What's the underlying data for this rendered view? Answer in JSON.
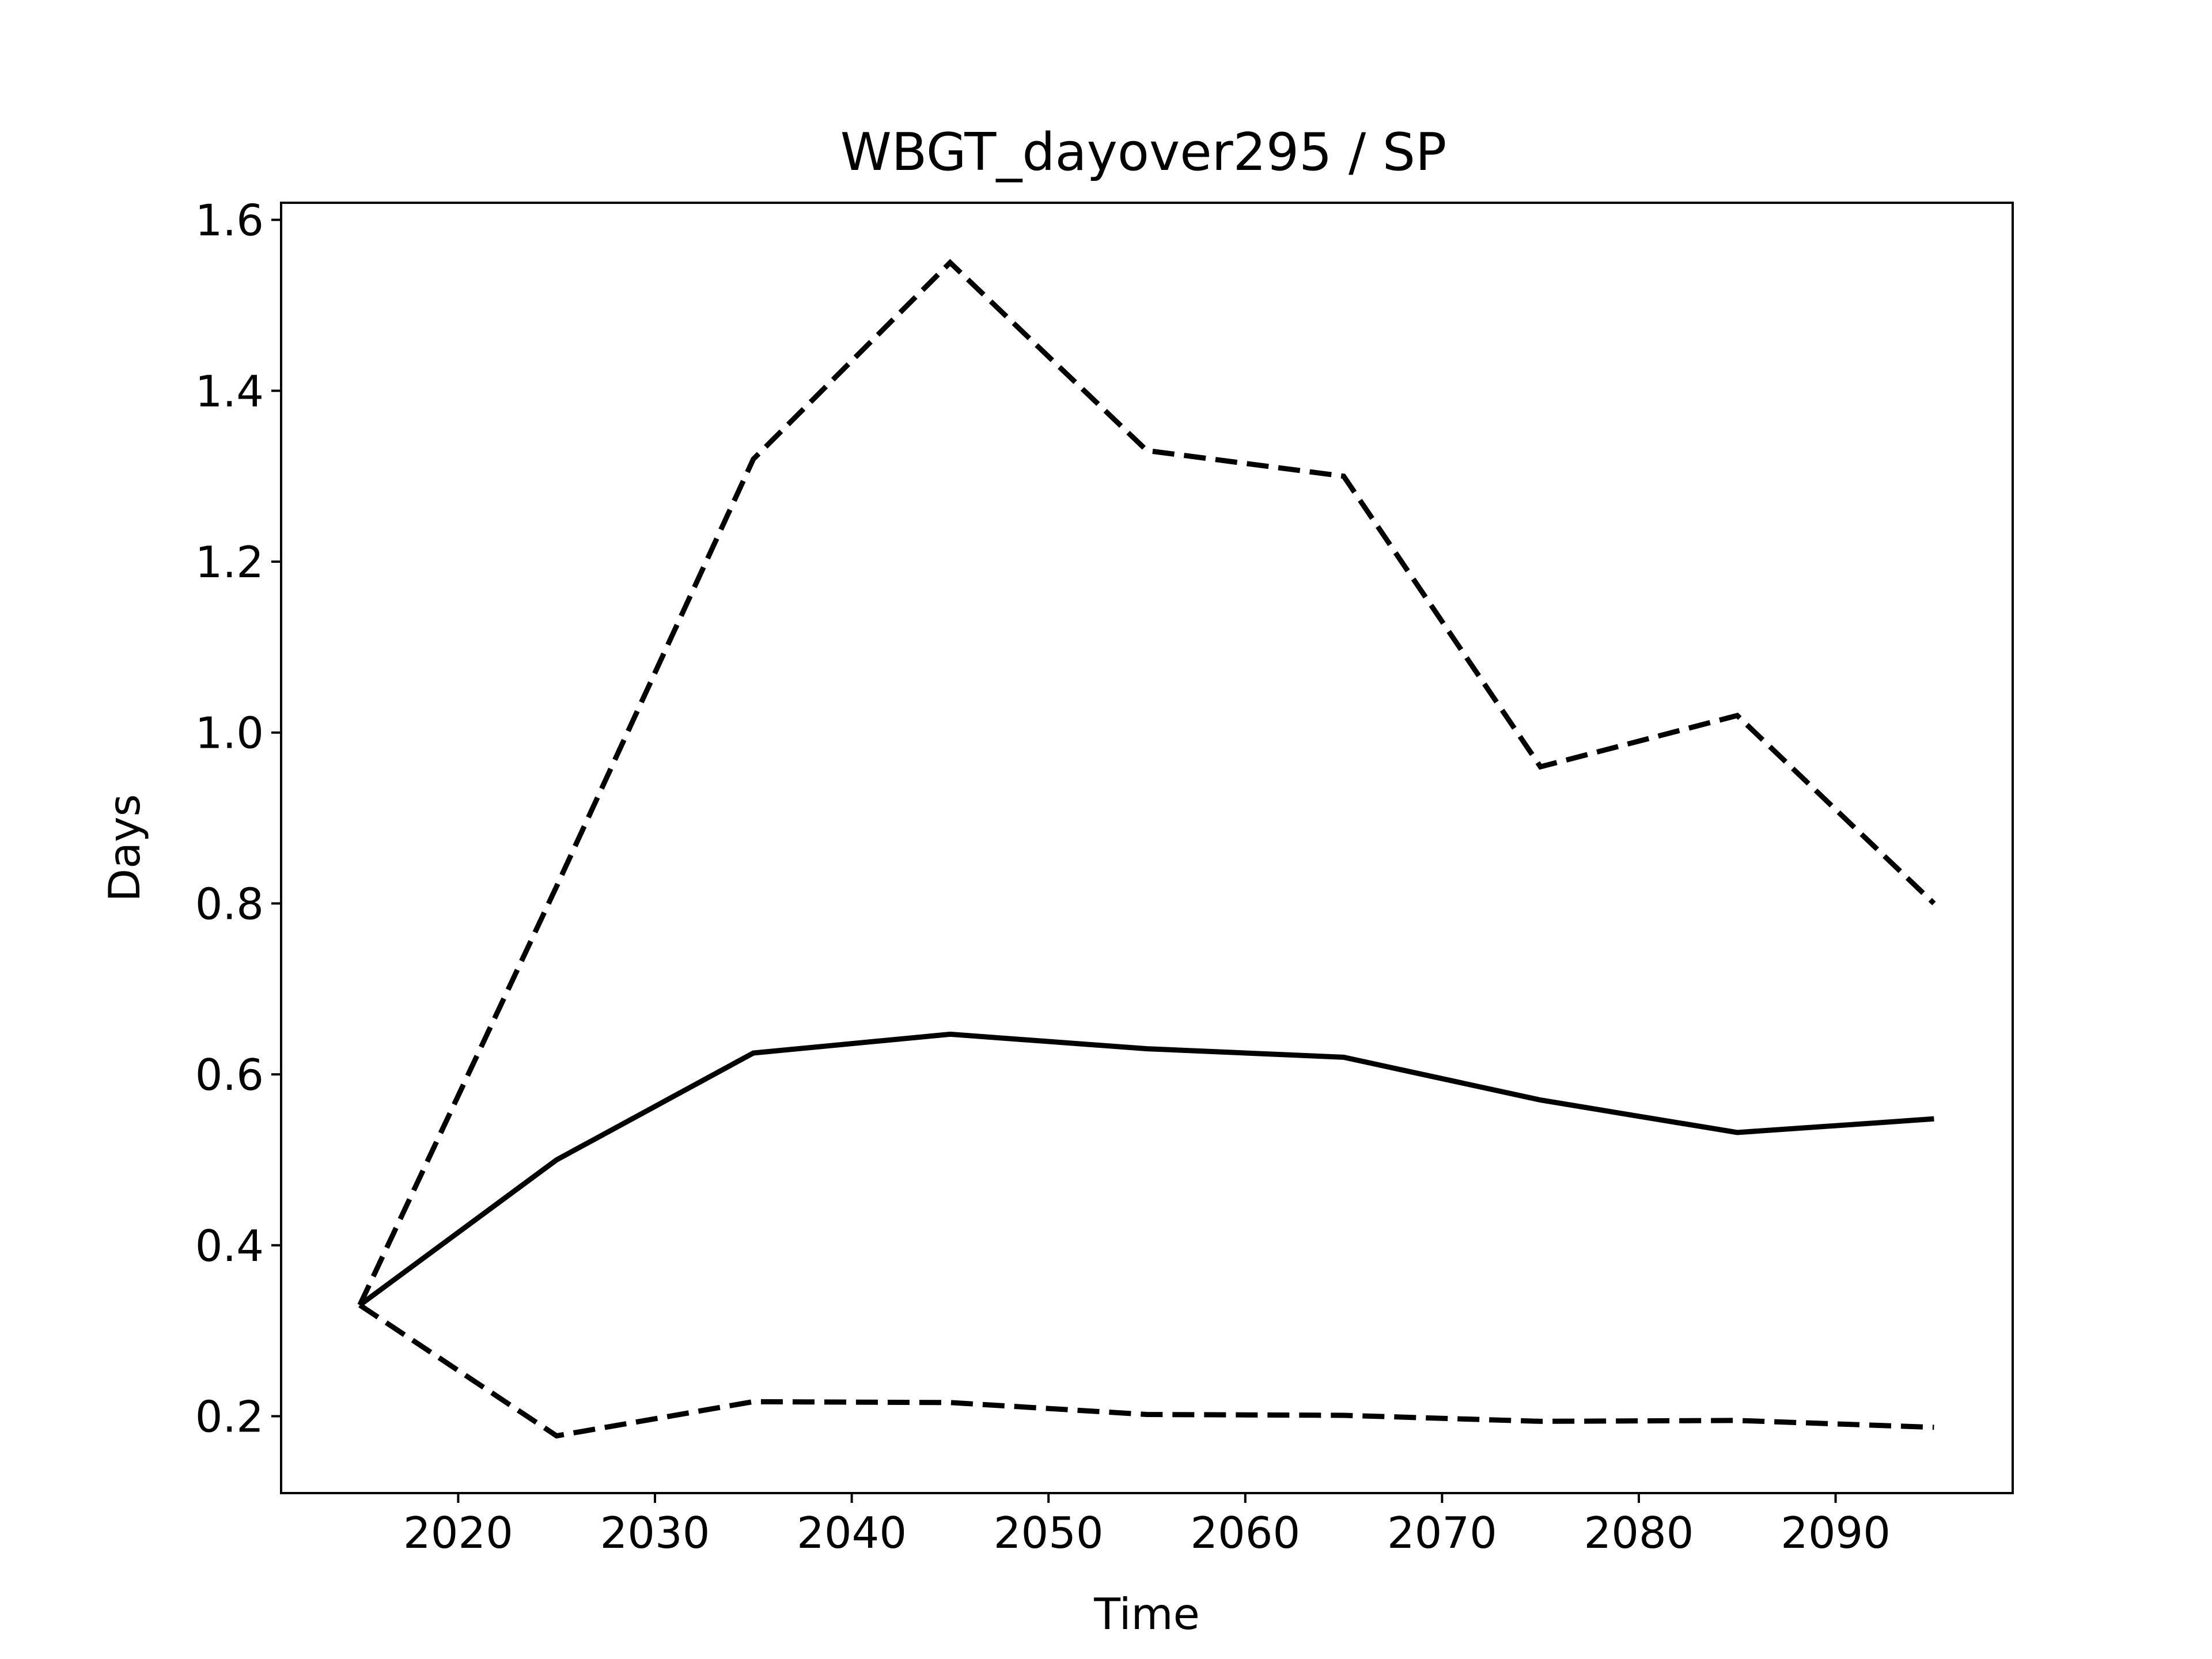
{
  "chart_data": {
    "type": "line",
    "title": "WBGT_dayover295 / SP",
    "xlabel": "Time",
    "ylabel": "Days",
    "xlim": [
      2011,
      2099
    ],
    "ylim": [
      0.11,
      1.62
    ],
    "xticks": [
      2020,
      2030,
      2040,
      2050,
      2060,
      2070,
      2080,
      2090
    ],
    "yticks": [
      0.2,
      0.4,
      0.6,
      0.8,
      1.0,
      1.2,
      1.4,
      1.6
    ],
    "ytick_labels": [
      "0.2",
      "0.4",
      "0.6",
      "0.8",
      "1.0",
      "1.2",
      "1.4",
      "1.6"
    ],
    "grid": false,
    "x": [
      2015,
      2025,
      2035,
      2045,
      2055,
      2065,
      2075,
      2085,
      2095
    ],
    "series": [
      {
        "style": "dashed",
        "color": "#000000",
        "values": [
          0.33,
          0.82,
          1.32,
          1.55,
          1.33,
          1.3,
          0.96,
          1.02,
          0.8
        ]
      },
      {
        "style": "solid",
        "color": "#000000",
        "values": [
          0.33,
          0.5,
          0.625,
          0.647,
          0.63,
          0.62,
          0.57,
          0.532,
          0.548
        ]
      },
      {
        "style": "dashed",
        "color": "#000000",
        "values": [
          0.33,
          0.177,
          0.217,
          0.216,
          0.202,
          0.201,
          0.194,
          0.195,
          0.187
        ]
      }
    ]
  }
}
